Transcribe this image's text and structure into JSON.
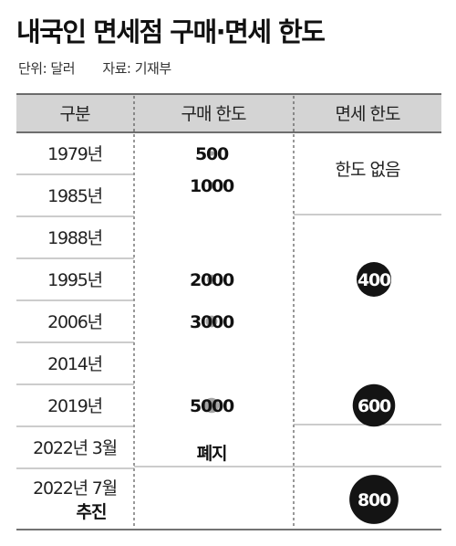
{
  "title": "내국인 면세점 구매·면세 한도",
  "unit": "단위: 달러",
  "source": "자료: 기재부",
  "headers": {
    "category": "구분",
    "purchase": "구매 한도",
    "dutyfree": "면세 한도"
  },
  "colors": {
    "header_bg": "#d4d4d4",
    "bubble": "#8c8c8c",
    "duty": "#141414",
    "rule": "#444444"
  },
  "chart_data": {
    "type": "table",
    "rows": [
      {
        "year": "1979년",
        "purchase": 500
      },
      {
        "year": "1985년",
        "purchase": 1000
      },
      {
        "year": "1988년"
      },
      {
        "year": "1995년",
        "purchase": 2000,
        "dutyfree": 400
      },
      {
        "year": "2006년",
        "purchase": 3000
      },
      {
        "year": "2014년"
      },
      {
        "year": "2019년",
        "purchase": 5000,
        "dutyfree": 600
      },
      {
        "year": "2022년 3월",
        "purchase_note": "폐지"
      },
      {
        "year": "2022년 7월",
        "year_note": "추진",
        "dutyfree": 800
      }
    ],
    "dutyfree_none_label": "한도 없음"
  }
}
